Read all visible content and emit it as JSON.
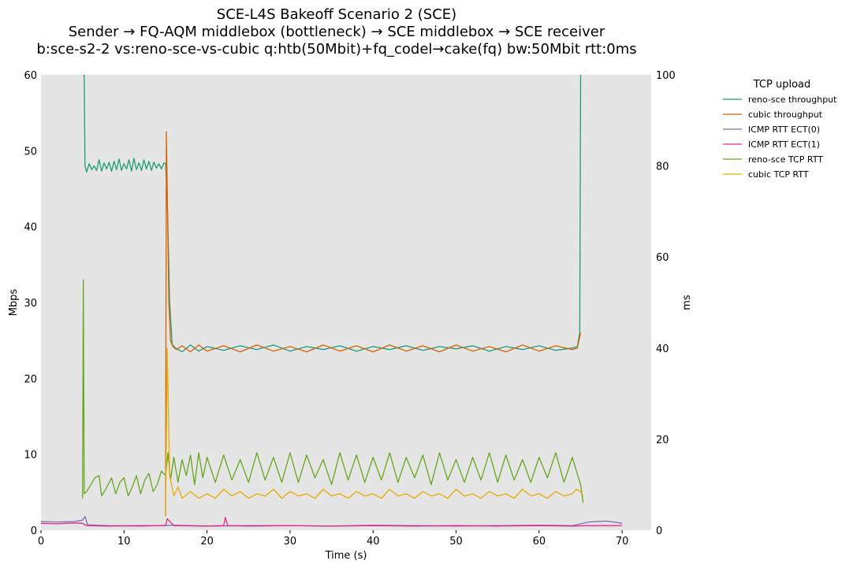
{
  "chart_data": {
    "type": "line",
    "title_lines": [
      "SCE-L4S Bakeoff Scenario 2 (SCE)",
      "Sender → FQ-AQM middlebox (bottleneck) → SCE middlebox → SCE receiver",
      "b:sce-s2-2 vs:reno-sce-vs-cubic q:htb(50Mbit)+fq_codel→cake(fq) bw:50Mbit rtt:0ms"
    ],
    "xlabel": "Time (s)",
    "ylabel_left": "Mbps",
    "ylabel_right": "ms",
    "xlim": [
      0,
      73.5
    ],
    "ylim_left": [
      0,
      60
    ],
    "ylim_right": [
      0,
      100
    ],
    "x_ticks": [
      0,
      10,
      20,
      30,
      40,
      50,
      60,
      70
    ],
    "y_ticks_left": [
      0,
      10,
      20,
      30,
      40,
      50,
      60
    ],
    "y_ticks_right": [
      0,
      20,
      40,
      60,
      80,
      100
    ],
    "grid": false,
    "background": "#e5e5e5",
    "legend": {
      "title": "TCP upload",
      "placement": "outside-right"
    },
    "series": [
      {
        "name": "reno-sce throughput",
        "axis": "left",
        "color": "#1b9e77",
        "x": [
          5.0,
          5.2,
          5.3,
          5.5,
          5.8,
          6.1,
          6.4,
          6.7,
          7.0,
          7.3,
          7.6,
          7.9,
          8.2,
          8.5,
          8.8,
          9.1,
          9.4,
          9.7,
          10.0,
          10.3,
          10.6,
          10.9,
          11.2,
          11.5,
          11.8,
          12.1,
          12.4,
          12.7,
          13.0,
          13.3,
          13.6,
          13.9,
          14.2,
          14.5,
          14.8,
          15.0,
          15.2,
          15.5,
          15.8,
          16.2,
          17.0,
          18.0,
          19.0,
          20.0,
          22.0,
          24.0,
          26.0,
          28.0,
          30.0,
          32.0,
          34.0,
          36.0,
          38.0,
          40.0,
          42.0,
          44.0,
          46.0,
          48.0,
          50.0,
          52.0,
          54.0,
          56.0,
          58.0,
          60.0,
          62.0,
          64.0,
          64.6,
          64.9,
          65.0
        ],
        "values": [
          60.0,
          60.0,
          48.0,
          47.2,
          48.3,
          47.5,
          48.0,
          47.4,
          48.8,
          47.3,
          48.4,
          47.6,
          48.5,
          47.3,
          48.6,
          47.5,
          48.9,
          47.4,
          48.3,
          47.6,
          48.8,
          47.3,
          49.0,
          47.5,
          48.4,
          47.4,
          48.8,
          47.6,
          48.6,
          47.4,
          48.5,
          47.7,
          48.3,
          47.6,
          48.4,
          48.3,
          44.0,
          30.0,
          24.5,
          24.0,
          23.5,
          24.4,
          23.6,
          24.2,
          23.7,
          24.3,
          23.8,
          24.4,
          23.6,
          24.2,
          23.8,
          24.3,
          23.6,
          24.2,
          23.8,
          24.3,
          23.7,
          24.2,
          23.9,
          24.3,
          23.6,
          24.2,
          23.8,
          24.3,
          23.7,
          24.0,
          24.2,
          26.0,
          60.0
        ]
      },
      {
        "name": "cubic throughput",
        "axis": "left",
        "color": "#d95f02",
        "x": [
          15.0,
          15.1,
          15.2,
          15.4,
          15.6,
          15.9,
          16.3,
          17.0,
          18.0,
          19.0,
          20.0,
          22.0,
          24.0,
          26.0,
          28.0,
          30.0,
          32.0,
          34.0,
          36.0,
          38.0,
          40.0,
          42.0,
          44.0,
          46.0,
          48.0,
          50.0,
          52.0,
          54.0,
          56.0,
          58.0,
          60.0,
          62.0,
          64.0,
          64.6,
          65.0
        ],
        "values": [
          2.0,
          52.5,
          45.0,
          30.0,
          25.0,
          24.2,
          23.8,
          24.3,
          23.5,
          24.4,
          23.6,
          24.3,
          23.5,
          24.4,
          23.6,
          24.2,
          23.5,
          24.4,
          23.6,
          24.3,
          23.5,
          24.4,
          23.6,
          24.3,
          23.5,
          24.4,
          23.6,
          24.2,
          23.5,
          24.4,
          23.6,
          24.3,
          23.8,
          24.0,
          26.0
        ]
      },
      {
        "name": "ICMP RTT ECT(0)",
        "axis": "right",
        "color": "#7570b3",
        "x": [
          0,
          2,
          4,
          5.0,
          5.3,
          5.6,
          8,
          12,
          16,
          20,
          25,
          30,
          35,
          40,
          45,
          50,
          55,
          60,
          64,
          66,
          68,
          69,
          70
        ],
        "values": [
          1.9,
          1.8,
          1.9,
          2.2,
          3.0,
          1.2,
          1.0,
          0.9,
          1.1,
          0.9,
          1.0,
          1.0,
          0.9,
          1.1,
          1.0,
          0.9,
          1.0,
          1.1,
          1.0,
          1.8,
          2.0,
          1.8,
          1.5
        ]
      },
      {
        "name": "ICMP RTT ECT(1)",
        "axis": "right",
        "color": "#e7298a",
        "x": [
          0,
          2,
          4,
          5.0,
          5.5,
          8,
          12,
          15.0,
          15.2,
          16,
          20,
          22.0,
          22.2,
          22.5,
          25,
          30,
          35,
          40,
          45,
          50,
          55,
          60,
          64,
          66,
          68,
          70
        ],
        "values": [
          1.5,
          1.4,
          1.6,
          1.5,
          1.0,
          0.9,
          1.0,
          1.0,
          2.5,
          1.0,
          0.9,
          1.0,
          2.8,
          1.0,
          0.9,
          1.0,
          0.9,
          1.0,
          0.9,
          1.0,
          0.9,
          1.0,
          0.9,
          1.0,
          1.0,
          1.0
        ]
      },
      {
        "name": "reno-sce TCP RTT",
        "axis": "right",
        "color": "#66a61e",
        "x": [
          5.0,
          5.1,
          5.2,
          5.5,
          6.0,
          6.5,
          7.0,
          7.3,
          7.8,
          8.5,
          9.0,
          9.5,
          10.0,
          10.5,
          11.0,
          11.5,
          12.0,
          12.5,
          13.0,
          13.5,
          14.0,
          14.5,
          15.0,
          15.3,
          15.6,
          16.0,
          16.5,
          17.0,
          17.5,
          18.0,
          18.5,
          19.0,
          19.5,
          20.0,
          21.0,
          22.0,
          23.0,
          24.0,
          25.0,
          26.0,
          27.0,
          28.0,
          29.0,
          30.0,
          31.0,
          32.0,
          33.0,
          34.0,
          35.0,
          36.0,
          37.0,
          38.0,
          39.0,
          40.0,
          41.0,
          42.0,
          43.0,
          44.0,
          45.0,
          46.0,
          47.0,
          48.0,
          49.0,
          50.0,
          51.0,
          52.0,
          53.0,
          54.0,
          55.0,
          56.0,
          57.0,
          58.0,
          59.0,
          60.0,
          61.0,
          62.0,
          63.0,
          64.0,
          64.5,
          65.0,
          65.3
        ],
        "values": [
          7.0,
          55.0,
          8.0,
          8.5,
          10.0,
          11.5,
          12.0,
          7.5,
          9.0,
          11.5,
          8.0,
          10.5,
          11.5,
          7.5,
          9.5,
          12.0,
          8.0,
          11.0,
          12.5,
          8.5,
          10.0,
          13.0,
          12.0,
          17.0,
          11.0,
          16.0,
          10.5,
          15.5,
          12.0,
          16.5,
          10.0,
          17.0,
          11.5,
          16.0,
          10.5,
          16.5,
          11.0,
          15.5,
          10.5,
          17.0,
          11.0,
          16.0,
          10.5,
          17.0,
          10.5,
          16.5,
          11.5,
          15.5,
          10.0,
          17.0,
          11.0,
          16.5,
          10.5,
          16.0,
          11.0,
          17.0,
          10.5,
          16.0,
          11.5,
          16.5,
          10.0,
          17.0,
          11.0,
          15.5,
          10.5,
          16.0,
          11.0,
          17.0,
          10.5,
          16.5,
          11.0,
          15.5,
          10.5,
          16.0,
          11.5,
          17.0,
          10.5,
          16.0,
          13.0,
          10.0,
          6.0
        ]
      },
      {
        "name": "cubic TCP RTT",
        "axis": "right",
        "color": "#e6ab02",
        "x": [
          15.0,
          15.2,
          15.5,
          16.0,
          16.5,
          17.0,
          18.0,
          19.0,
          20.0,
          21.0,
          22.0,
          23.0,
          24.0,
          25.0,
          26.0,
          27.0,
          28.0,
          29.0,
          30.0,
          31.0,
          32.0,
          33.0,
          34.0,
          35.0,
          36.0,
          37.0,
          38.0,
          39.0,
          40.0,
          41.0,
          42.0,
          43.0,
          44.0,
          45.0,
          46.0,
          47.0,
          48.0,
          49.0,
          50.0,
          51.0,
          52.0,
          53.0,
          54.0,
          55.0,
          56.0,
          57.0,
          58.0,
          59.0,
          60.0,
          61.0,
          62.0,
          63.0,
          64.0,
          64.5,
          65.0,
          65.3
        ],
        "values": [
          3.0,
          40.0,
          12.0,
          7.5,
          9.5,
          7.0,
          8.5,
          7.0,
          8.0,
          7.0,
          9.0,
          7.5,
          8.5,
          7.0,
          8.0,
          7.5,
          9.0,
          7.0,
          8.5,
          7.5,
          8.0,
          7.0,
          9.0,
          7.5,
          8.0,
          7.0,
          8.5,
          7.5,
          8.0,
          7.0,
          9.0,
          7.5,
          8.0,
          7.0,
          8.5,
          7.5,
          8.0,
          7.0,
          9.0,
          7.5,
          8.0,
          7.0,
          8.5,
          7.5,
          8.0,
          7.0,
          9.0,
          7.5,
          8.0,
          7.0,
          8.5,
          7.5,
          8.0,
          9.0,
          8.5,
          7.5
        ]
      }
    ]
  }
}
